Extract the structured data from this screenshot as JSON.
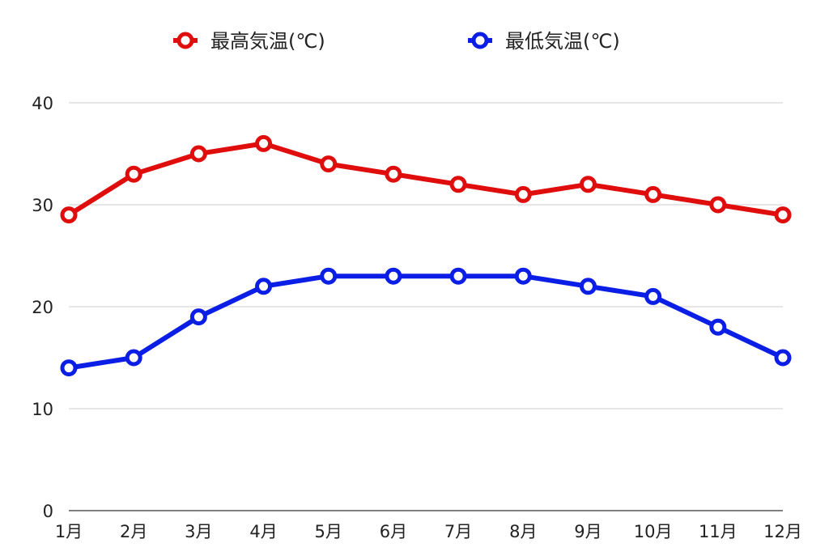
{
  "chart_data": {
    "type": "line",
    "categories": [
      "1月",
      "2月",
      "3月",
      "4月",
      "5月",
      "6月",
      "7月",
      "8月",
      "9月",
      "10月",
      "11月",
      "12月"
    ],
    "series": [
      {
        "name": "最高気温(℃)",
        "color": "#e00d0d",
        "values": [
          29,
          33,
          35,
          36,
          34,
          33,
          32,
          31,
          32,
          31,
          30,
          29
        ]
      },
      {
        "name": "最低気温(℃)",
        "color": "#0a1ee6",
        "values": [
          14,
          15,
          19,
          22,
          23,
          23,
          23,
          23,
          22,
          21,
          18,
          15
        ]
      }
    ],
    "yticks": [
      "0",
      "10",
      "20",
      "30",
      "40"
    ],
    "ylim": [
      0,
      40
    ],
    "grid": true,
    "legend_position": "top-center"
  }
}
